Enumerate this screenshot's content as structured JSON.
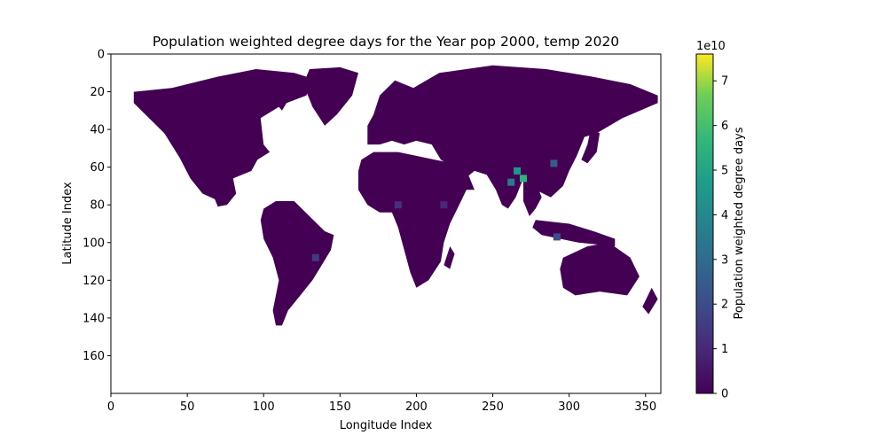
{
  "chart_data": {
    "type": "heatmap",
    "title": "Population weighted degree days for the Year pop 2000, temp 2020",
    "xlabel": "Longitude Index",
    "ylabel": "Latitude Index",
    "xlim": [
      0,
      360
    ],
    "ylim": [
      180,
      0
    ],
    "x_ticks": [
      "0",
      "50",
      "100",
      "150",
      "200",
      "250",
      "300",
      "350"
    ],
    "y_ticks": [
      "0",
      "20",
      "40",
      "60",
      "80",
      "100",
      "120",
      "140",
      "160"
    ],
    "grid": false,
    "colorbar": {
      "label": "Population weighted degree days",
      "exponent_label": "1e10",
      "range": [
        0,
        7.6
      ],
      "ticks": [
        "0",
        "1",
        "2",
        "3",
        "4",
        "5",
        "6",
        "7"
      ],
      "colormap": "viridis"
    },
    "colors": {
      "background_value": "#440154",
      "no_data": "#ffffff"
    },
    "land_regions": [
      {
        "name": "North America",
        "lonlat": [
          [
            15,
            20
          ],
          [
            40,
            18
          ],
          [
            70,
            12
          ],
          [
            95,
            8
          ],
          [
            120,
            10
          ],
          [
            132,
            13
          ],
          [
            128,
            22
          ],
          [
            115,
            26
          ],
          [
            112,
            30
          ],
          [
            110,
            28
          ],
          [
            98,
            34
          ],
          [
            100,
            48
          ],
          [
            104,
            52
          ],
          [
            96,
            56
          ],
          [
            92,
            62
          ],
          [
            80,
            66
          ],
          [
            82,
            74
          ],
          [
            76,
            80
          ],
          [
            70,
            81
          ],
          [
            68,
            77
          ],
          [
            60,
            74
          ],
          [
            52,
            66
          ],
          [
            45,
            55
          ],
          [
            35,
            42
          ],
          [
            15,
            26
          ]
        ]
      },
      {
        "name": "Greenland",
        "lonlat": [
          [
            130,
            8
          ],
          [
            150,
            7
          ],
          [
            162,
            10
          ],
          [
            158,
            22
          ],
          [
            148,
            32
          ],
          [
            140,
            38
          ],
          [
            132,
            28
          ],
          [
            126,
            16
          ]
        ]
      },
      {
        "name": "South America",
        "lonlat": [
          [
            100,
            82
          ],
          [
            108,
            78
          ],
          [
            120,
            78
          ],
          [
            130,
            86
          ],
          [
            140,
            94
          ],
          [
            146,
            96
          ],
          [
            144,
            104
          ],
          [
            138,
            112
          ],
          [
            132,
            120
          ],
          [
            124,
            128
          ],
          [
            116,
            136
          ],
          [
            112,
            144
          ],
          [
            108,
            144
          ],
          [
            106,
            136
          ],
          [
            110,
            120
          ],
          [
            106,
            108
          ],
          [
            100,
            98
          ],
          [
            98,
            88
          ]
        ]
      },
      {
        "name": "Eurasia",
        "lonlat": [
          [
            172,
            32
          ],
          [
            176,
            22
          ],
          [
            186,
            14
          ],
          [
            198,
            18
          ],
          [
            215,
            10
          ],
          [
            250,
            6
          ],
          [
            285,
            8
          ],
          [
            315,
            12
          ],
          [
            340,
            16
          ],
          [
            358,
            22
          ],
          [
            358,
            26
          ],
          [
            335,
            34
          ],
          [
            318,
            42
          ],
          [
            310,
            44
          ],
          [
            305,
            54
          ],
          [
            300,
            62
          ],
          [
            296,
            70
          ],
          [
            288,
            76
          ],
          [
            278,
            72
          ],
          [
            270,
            66
          ],
          [
            265,
            76
          ],
          [
            260,
            82
          ],
          [
            256,
            80
          ],
          [
            252,
            72
          ],
          [
            246,
            64
          ],
          [
            238,
            62
          ],
          [
            232,
            66
          ],
          [
            224,
            60
          ],
          [
            216,
            56
          ],
          [
            210,
            48
          ],
          [
            200,
            46
          ],
          [
            192,
            48
          ],
          [
            184,
            46
          ],
          [
            176,
            48
          ],
          [
            168,
            48
          ],
          [
            168,
            38
          ]
        ]
      },
      {
        "name": "Africa",
        "lonlat": [
          [
            164,
            56
          ],
          [
            172,
            52
          ],
          [
            188,
            52
          ],
          [
            200,
            54
          ],
          [
            212,
            56
          ],
          [
            220,
            62
          ],
          [
            226,
            70
          ],
          [
            234,
            70
          ],
          [
            228,
            80
          ],
          [
            222,
            90
          ],
          [
            218,
            100
          ],
          [
            216,
            110
          ],
          [
            208,
            120
          ],
          [
            200,
            124
          ],
          [
            196,
            116
          ],
          [
            192,
            104
          ],
          [
            188,
            92
          ],
          [
            184,
            84
          ],
          [
            176,
            84
          ],
          [
            168,
            80
          ],
          [
            162,
            72
          ],
          [
            162,
            62
          ]
        ]
      },
      {
        "name": "Madagascar",
        "lonlat": [
          [
            222,
            102
          ],
          [
            225,
            106
          ],
          [
            222,
            114
          ],
          [
            218,
            112
          ]
        ]
      },
      {
        "name": "Arabia",
        "lonlat": [
          [
            212,
            56
          ],
          [
            224,
            58
          ],
          [
            234,
            64
          ],
          [
            238,
            72
          ],
          [
            224,
            72
          ],
          [
            216,
            64
          ]
        ]
      },
      {
        "name": "Southeast Asia",
        "lonlat": [
          [
            270,
            66
          ],
          [
            278,
            68
          ],
          [
            282,
            76
          ],
          [
            278,
            82
          ],
          [
            274,
            86
          ],
          [
            270,
            78
          ]
        ]
      },
      {
        "name": "Indonesia",
        "lonlat": [
          [
            278,
            88
          ],
          [
            300,
            90
          ],
          [
            316,
            94
          ],
          [
            330,
            98
          ],
          [
            330,
            102
          ],
          [
            306,
            100
          ],
          [
            282,
            96
          ],
          [
            276,
            92
          ]
        ]
      },
      {
        "name": "Australia",
        "lonlat": [
          [
            296,
            108
          ],
          [
            312,
            102
          ],
          [
            326,
            100
          ],
          [
            340,
            108
          ],
          [
            346,
            118
          ],
          [
            338,
            128
          ],
          [
            320,
            126
          ],
          [
            304,
            128
          ],
          [
            296,
            124
          ],
          [
            294,
            114
          ]
        ]
      },
      {
        "name": "New Zealand",
        "lonlat": [
          [
            354,
            124
          ],
          [
            358,
            130
          ],
          [
            352,
            138
          ],
          [
            348,
            134
          ]
        ]
      },
      {
        "name": "Japan",
        "lonlat": [
          [
            314,
            40
          ],
          [
            320,
            42
          ],
          [
            318,
            52
          ],
          [
            312,
            58
          ],
          [
            308,
            56
          ],
          [
            312,
            48
          ]
        ]
      },
      {
        "name": "Britain",
        "lonlat": [
          [
            176,
            34
          ],
          [
            180,
            34
          ],
          [
            180,
            42
          ],
          [
            176,
            42
          ]
        ]
      }
    ],
    "hotspots": [
      {
        "name": "India",
        "lon": 262,
        "lat": 68,
        "value": 3.5
      },
      {
        "name": "North India",
        "lon": 266,
        "lat": 62,
        "value": 4.5
      },
      {
        "name": "Bengal",
        "lon": 270,
        "lat": 66,
        "value": 5.5
      },
      {
        "name": "East China",
        "lon": 290,
        "lat": 58,
        "value": 2.5
      },
      {
        "name": "Java",
        "lon": 292,
        "lat": 97,
        "value": 2.0
      },
      {
        "name": "Southeast Brazil",
        "lon": 134,
        "lat": 108,
        "value": 1.5
      },
      {
        "name": "Nigeria",
        "lon": 188,
        "lat": 80,
        "value": 1.2
      },
      {
        "name": "Ethiopia",
        "lon": 218,
        "lat": 80,
        "value": 1.0
      }
    ]
  }
}
